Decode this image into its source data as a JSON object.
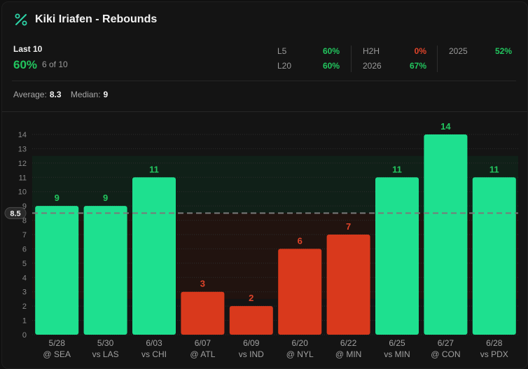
{
  "header": {
    "title": "Kiki Iriafen - Rebounds",
    "icon": "percent-icon"
  },
  "summary": {
    "last_label": "Last 10",
    "last_pct": "60%",
    "last_of": "6 of 10",
    "stats": [
      {
        "label": "L5",
        "value": "60%",
        "status": "hit"
      },
      {
        "label": "L20",
        "value": "60%",
        "status": "hit"
      },
      {
        "label": "H2H",
        "value": "0%",
        "status": "miss"
      },
      {
        "label": "2026",
        "value": "67%",
        "status": "hit"
      },
      {
        "label": "2025",
        "value": "52%",
        "status": "hit"
      }
    ],
    "average_label": "Average:",
    "average_value": "8.3",
    "median_label": "Median:",
    "median_value": "9"
  },
  "colors": {
    "hit": "#1ee08f",
    "miss": "#d9391c",
    "hit_text": "#22c55e",
    "miss_text": "#e0442a"
  },
  "chart_data": {
    "type": "bar",
    "categories": [
      "5/28 @ SEA",
      "5/30 vs LAS",
      "6/03 vs CHI",
      "6/07 @ ATL",
      "6/09 vs IND",
      "6/20 @ NYL",
      "6/22 @ MIN",
      "6/25 vs MIN",
      "6/27 @ CON",
      "6/28 vs PDX"
    ],
    "dates": [
      "5/28",
      "5/30",
      "6/03",
      "6/07",
      "6/09",
      "6/20",
      "6/22",
      "6/25",
      "6/27",
      "6/28"
    ],
    "opponents": [
      "@ SEA",
      "vs LAS",
      "vs CHI",
      "@ ATL",
      "vs IND",
      "@ NYL",
      "@ MIN",
      "vs MIN",
      "@ CON",
      "vs PDX"
    ],
    "values": [
      9,
      9,
      11,
      3,
      2,
      6,
      7,
      11,
      14,
      11
    ],
    "line": 8.5,
    "line_label": "8.5",
    "ylim": [
      0,
      14
    ],
    "yticks": [
      0,
      1,
      2,
      3,
      4,
      5,
      6,
      7,
      8,
      9,
      10,
      11,
      12,
      13,
      14
    ],
    "grid": true
  }
}
